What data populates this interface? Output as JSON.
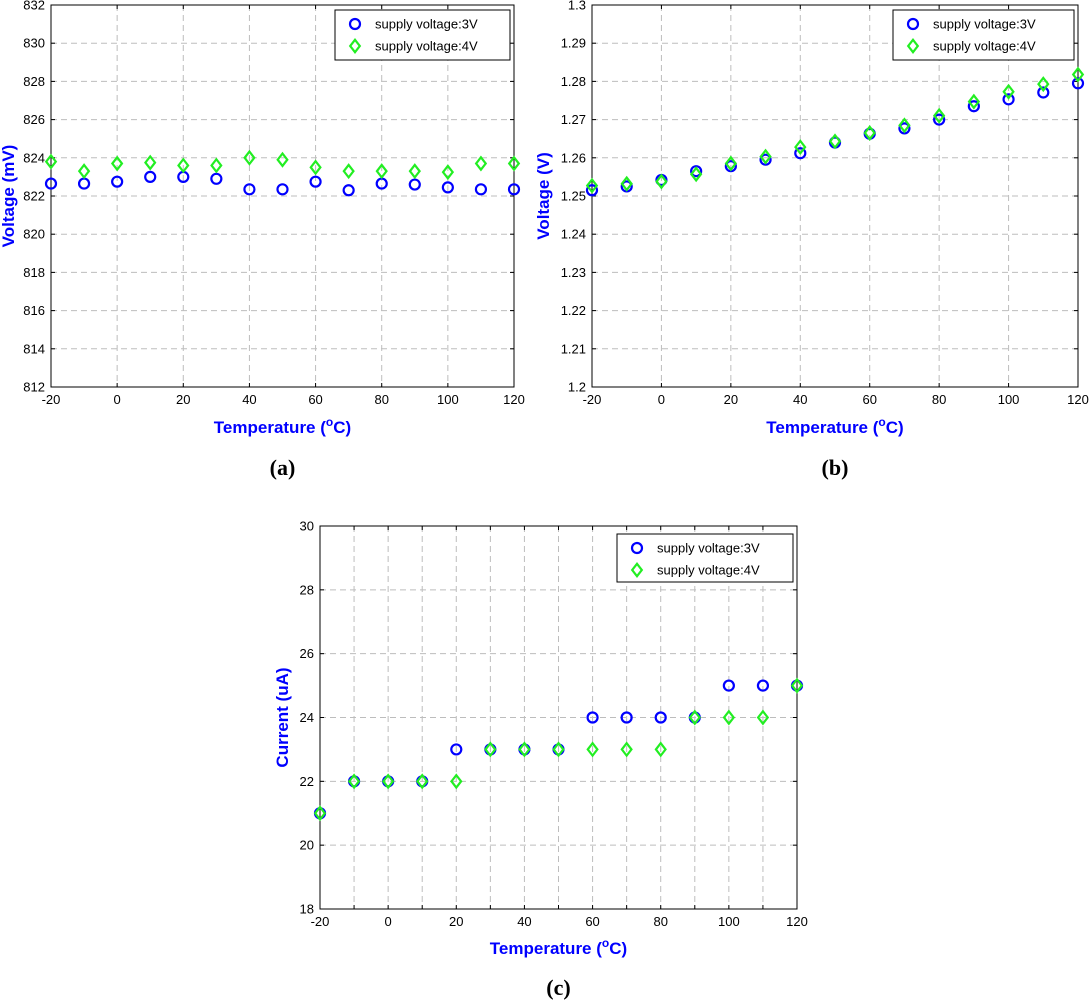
{
  "colors": {
    "series1": "#0000ff",
    "series2": "#22ee22",
    "axis_label": "#0000ff",
    "grid": "#bdbdbd"
  },
  "chart_data": [
    {
      "type": "scatter",
      "caption": "(a)",
      "xlabel_main": "Temperature (",
      "xlabel_sup": "o",
      "xlabel_tail": "C)",
      "ylabel": "Voltage (mV)",
      "xlim": [
        -20,
        120
      ],
      "ylim": [
        812,
        832
      ],
      "xticks": [
        -20,
        0,
        20,
        40,
        60,
        80,
        100,
        120
      ],
      "xtick_labels": [
        "-20",
        "0",
        "20",
        "40",
        "60",
        "80",
        "100",
        "120"
      ],
      "yticks": [
        812,
        814,
        816,
        818,
        820,
        822,
        824,
        826,
        828,
        830,
        832
      ],
      "ytick_labels": [
        "812",
        "814",
        "816",
        "818",
        "820",
        "822",
        "824",
        "826",
        "828",
        "830",
        "832"
      ],
      "x": [
        -20,
        -10,
        0,
        10,
        20,
        30,
        40,
        50,
        60,
        70,
        80,
        90,
        100,
        110,
        120
      ],
      "series": [
        {
          "name": "supply voltage:3V",
          "marker": "circle",
          "values": [
            822.65,
            822.65,
            822.75,
            823.0,
            823.0,
            822.9,
            822.35,
            822.35,
            822.75,
            822.3,
            822.65,
            822.6,
            822.45,
            822.35,
            822.35
          ]
        },
        {
          "name": "supply voltage:4V",
          "marker": "diamond",
          "values": [
            823.8,
            823.3,
            823.7,
            823.75,
            823.6,
            823.6,
            824.0,
            823.9,
            823.5,
            823.3,
            823.3,
            823.3,
            823.25,
            823.7,
            823.7
          ]
        }
      ]
    },
    {
      "type": "scatter",
      "caption": "(b)",
      "xlabel_main": "Temperature (",
      "xlabel_sup": "o",
      "xlabel_tail": "C)",
      "ylabel": "Voltage (V)",
      "xlim": [
        -20,
        120
      ],
      "ylim": [
        1.2,
        1.3
      ],
      "xticks": [
        -20,
        0,
        20,
        40,
        60,
        80,
        100,
        120
      ],
      "xtick_labels": [
        "-20",
        "0",
        "20",
        "40",
        "60",
        "80",
        "100",
        "120"
      ],
      "yticks": [
        1.2,
        1.21,
        1.22,
        1.23,
        1.24,
        1.25,
        1.26,
        1.27,
        1.28,
        1.29,
        1.3
      ],
      "ytick_labels": [
        "1.2",
        "1.21",
        "1.22",
        "1.23",
        "1.24",
        "1.25",
        "1.26",
        "1.27",
        "1.28",
        "1.29",
        "1.3"
      ],
      "x": [
        -20,
        -10,
        0,
        10,
        20,
        30,
        40,
        50,
        60,
        70,
        80,
        90,
        100,
        110,
        120
      ],
      "series": [
        {
          "name": "supply voltage:3V",
          "marker": "circle",
          "values": [
            1.2515,
            1.2525,
            1.2542,
            1.2565,
            1.2578,
            1.2595,
            1.2612,
            1.264,
            1.2663,
            1.2677,
            1.27,
            1.2735,
            1.2753,
            1.2771,
            1.2795
          ]
        },
        {
          "name": "supply voltage:4V",
          "marker": "diamond",
          "values": [
            1.2527,
            1.2532,
            1.2538,
            1.2557,
            1.2585,
            1.2603,
            1.2628,
            1.2643,
            1.2665,
            1.2685,
            1.271,
            1.2747,
            1.2773,
            1.2793,
            1.2818
          ]
        }
      ]
    },
    {
      "type": "scatter",
      "caption": "(c)",
      "xlabel_main": "Temperature (",
      "xlabel_sup": "o",
      "xlabel_tail": "C)",
      "ylabel": "Current (uA)",
      "xlim": [
        -20,
        120
      ],
      "ylim": [
        18,
        30
      ],
      "xticks": [
        -20,
        -10,
        0,
        10,
        20,
        30,
        40,
        50,
        60,
        70,
        80,
        90,
        100,
        110,
        120
      ],
      "xtick_labels": [
        "-20",
        "",
        "0",
        "",
        "20",
        "",
        "40",
        "",
        "60",
        "",
        "80",
        "",
        "100",
        "",
        "120"
      ],
      "yticks": [
        18,
        20,
        22,
        24,
        26,
        28,
        30
      ],
      "ytick_labels": [
        "18",
        "20",
        "22",
        "24",
        "26",
        "28",
        "30"
      ],
      "x": [
        -20,
        -10,
        0,
        10,
        20,
        30,
        40,
        50,
        60,
        70,
        80,
        90,
        100,
        110,
        120
      ],
      "series": [
        {
          "name": "supply voltage:3V",
          "marker": "circle",
          "values": [
            21,
            22,
            22,
            22,
            23,
            23,
            23,
            23,
            24,
            24,
            24,
            24,
            25,
            25,
            25
          ]
        },
        {
          "name": "supply voltage:4V",
          "marker": "diamond",
          "values": [
            21,
            22,
            22,
            22,
            22,
            23,
            23,
            23,
            23,
            23,
            23,
            24,
            24,
            24,
            25
          ]
        }
      ]
    }
  ]
}
